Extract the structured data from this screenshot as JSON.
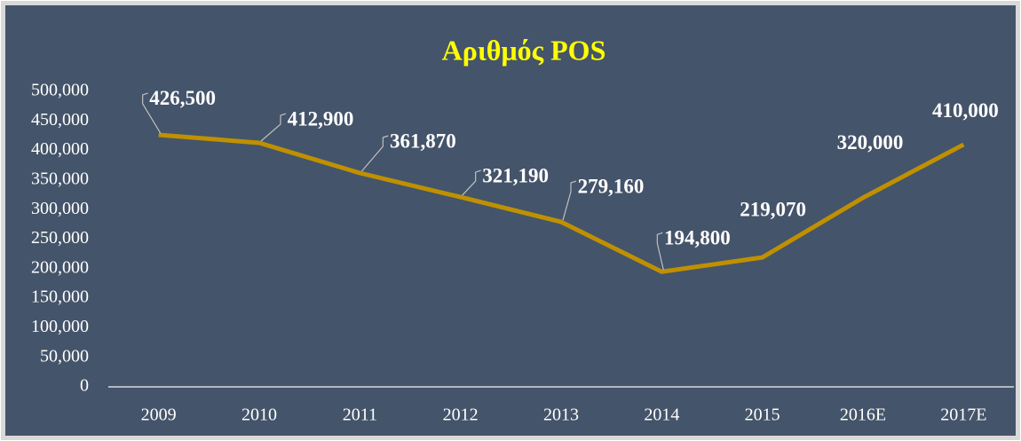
{
  "chart_data": {
    "type": "line",
    "title": "Αριθμός POS",
    "categories": [
      "2009",
      "2010",
      "2011",
      "2012",
      "2013",
      "2014",
      "2015",
      "2016E",
      "2017E"
    ],
    "series": [
      {
        "name": "Αριθμός POS",
        "color": "#bf9000",
        "values": [
          426500,
          412900,
          361870,
          321190,
          279160,
          194800,
          219070,
          320000,
          410000
        ],
        "value_labels": [
          "426,500",
          "412,900",
          "361,870",
          "321,190",
          "279,160",
          "194,800",
          "219,070",
          "320,000",
          "410,000"
        ]
      }
    ],
    "ylim": [
      0,
      500000
    ],
    "yticks": [
      0,
      {
        "value": 50000,
        "label": "50,000"
      },
      {
        "value": 100000,
        "label": "100,000"
      },
      {
        "value": 150000,
        "label": "150,000"
      },
      {
        "value": 200000,
        "label": "200,000"
      },
      {
        "value": 250000,
        "label": "250,000"
      },
      {
        "value": 300000,
        "label": "300,000"
      },
      {
        "value": 350000,
        "label": "350,000"
      },
      {
        "value": 400000,
        "label": "400,000"
      },
      {
        "value": 450000,
        "label": "450,000"
      },
      {
        "value": 500000,
        "label": "500,000"
      }
    ],
    "grid": false
  }
}
